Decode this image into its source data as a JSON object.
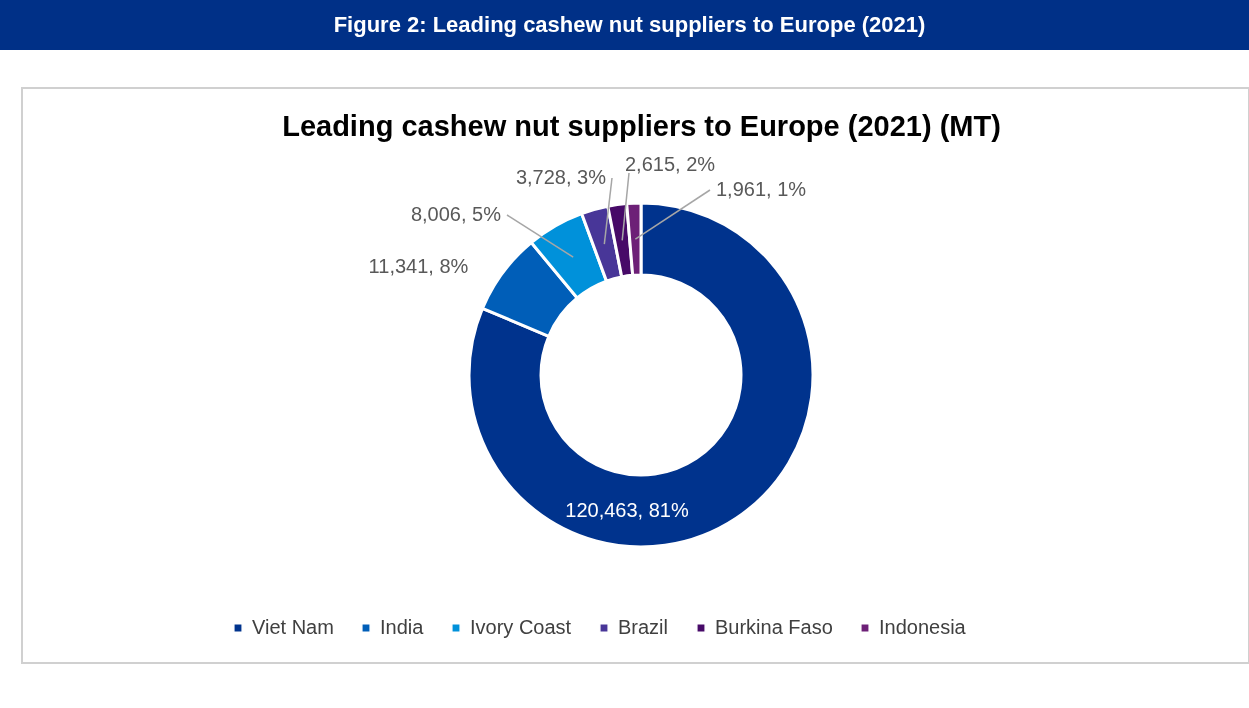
{
  "chart_data": {
    "type": "donut",
    "title": "Figure 2: Leading cashew nut suppliers to Europe (2021)",
    "subtitle": "Leading cashew nut suppliers to Europe (2021) (MT)",
    "categories": [
      "Viet Nam",
      "India",
      "Ivory Coast",
      "Brazil",
      "Burkina Faso",
      "Indonesia"
    ],
    "values": [
      120463,
      11341,
      8006,
      3728,
      2615,
      1961
    ],
    "colors": [
      "#00338d",
      "#005eb8",
      "#0091da",
      "#483698",
      "#470a68",
      "#6d2077"
    ],
    "value_labels": [
      "120,463, 81%",
      "11,341, 8%",
      "8,006, 5%",
      "3,728, 3%",
      "2,615, 2%",
      "1,961, 1%"
    ],
    "legend": "bottom"
  }
}
